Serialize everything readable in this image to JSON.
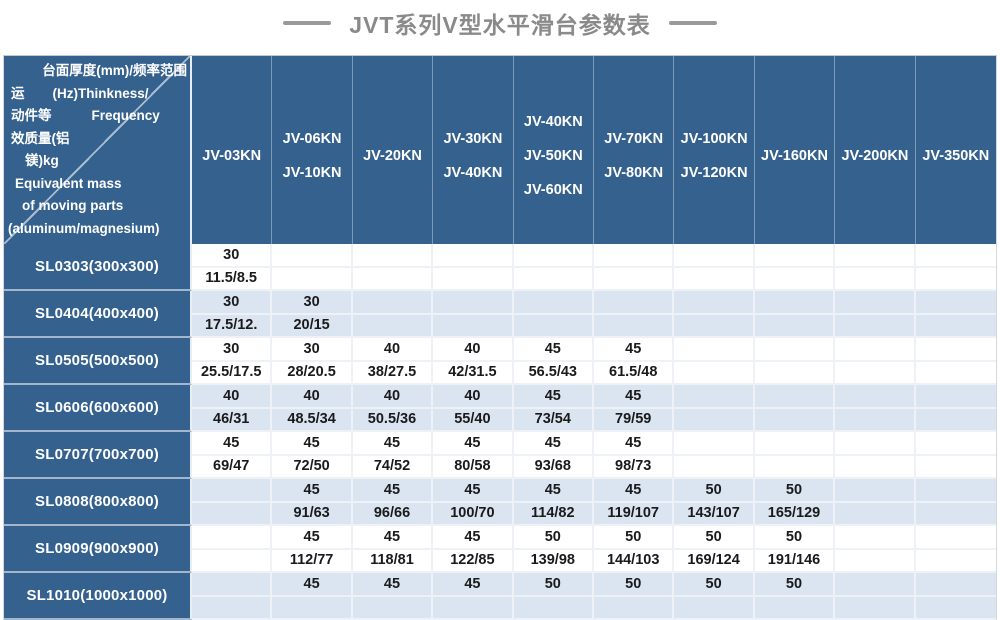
{
  "title": "JVT系列V型水平滑台参数表",
  "colors": {
    "header_blue": "#35618E",
    "stripe_blue": "#dbe5f1",
    "grid_line": "#eef1f5",
    "title_gray": "#8a8a8a",
    "data_text": "#1a1a1a",
    "header_text": "#ffffff"
  },
  "corner": {
    "lines": [
      {
        "left": "",
        "main": "台面厚度(mm)/频率范围"
      },
      {
        "left": "运",
        "main": "(Hz)Thinkness/"
      },
      {
        "left": "动件等",
        "main": "Frequency"
      },
      {
        "left": "效质量(铝",
        "main": ""
      },
      {
        "left": "镁)kg",
        "main": ""
      },
      {
        "left": "Equivalent mass",
        "main": ""
      },
      {
        "left": "of moving parts",
        "main": ""
      },
      {
        "left": "(aluminum/magnesium)",
        "main": ""
      }
    ]
  },
  "table": {
    "columns": [
      {
        "lines": [
          "JV-03KN"
        ]
      },
      {
        "lines": [
          "JV-06KN",
          "JV-10KN"
        ]
      },
      {
        "lines": [
          "JV-20KN"
        ]
      },
      {
        "lines": [
          "JV-30KN",
          "JV-40KN"
        ]
      },
      {
        "lines": [
          "JV-40KN",
          "JV-50KN",
          "JV-60KN"
        ]
      },
      {
        "lines": [
          "JV-70KN",
          "JV-80KN"
        ]
      },
      {
        "lines": [
          "JV-100KN",
          "JV-120KN"
        ]
      },
      {
        "lines": [
          "JV-160KN"
        ]
      },
      {
        "lines": [
          "JV-200KN"
        ]
      },
      {
        "lines": [
          "JV-350KN"
        ]
      }
    ],
    "rows": [
      {
        "label": "SL0303(300x300)",
        "cells": [
          [
            "30",
            "11.5/8.5"
          ],
          [
            "",
            ""
          ],
          [
            "",
            ""
          ],
          [
            "",
            ""
          ],
          [
            "",
            ""
          ],
          [
            "",
            ""
          ],
          [
            "",
            ""
          ],
          [
            "",
            ""
          ],
          [
            "",
            ""
          ],
          [
            "",
            ""
          ]
        ]
      },
      {
        "label": "SL0404(400x400)",
        "cells": [
          [
            "30",
            "17.5/12."
          ],
          [
            "30",
            "20/15"
          ],
          [
            "",
            ""
          ],
          [
            "",
            ""
          ],
          [
            "",
            ""
          ],
          [
            "",
            ""
          ],
          [
            "",
            ""
          ],
          [
            "",
            ""
          ],
          [
            "",
            ""
          ],
          [
            "",
            ""
          ]
        ]
      },
      {
        "label": "SL0505(500x500)",
        "cells": [
          [
            "30",
            "25.5/17.5"
          ],
          [
            "30",
            "28/20.5"
          ],
          [
            "40",
            "38/27.5"
          ],
          [
            "40",
            "42/31.5"
          ],
          [
            "45",
            "56.5/43"
          ],
          [
            "45",
            "61.5/48"
          ],
          [
            "",
            ""
          ],
          [
            "",
            ""
          ],
          [
            "",
            ""
          ],
          [
            "",
            ""
          ]
        ]
      },
      {
        "label": "SL0606(600x600)",
        "cells": [
          [
            "40",
            "46/31"
          ],
          [
            "40",
            "48.5/34"
          ],
          [
            "40",
            "50.5/36"
          ],
          [
            "40",
            "55/40"
          ],
          [
            "45",
            "73/54"
          ],
          [
            "45",
            "79/59"
          ],
          [
            "",
            ""
          ],
          [
            "",
            ""
          ],
          [
            "",
            ""
          ],
          [
            "",
            ""
          ]
        ]
      },
      {
        "label": "SL0707(700x700)",
        "cells": [
          [
            "45",
            "69/47"
          ],
          [
            "45",
            "72/50"
          ],
          [
            "45",
            "74/52"
          ],
          [
            "45",
            "80/58"
          ],
          [
            "45",
            "93/68"
          ],
          [
            "45",
            "98/73"
          ],
          [
            "",
            ""
          ],
          [
            "",
            ""
          ],
          [
            "",
            ""
          ],
          [
            "",
            ""
          ]
        ]
      },
      {
        "label": "SL0808(800x800)",
        "cells": [
          [
            "",
            ""
          ],
          [
            "45",
            "91/63"
          ],
          [
            "45",
            "96/66"
          ],
          [
            "45",
            "100/70"
          ],
          [
            "45",
            "114/82"
          ],
          [
            "45",
            "119/107"
          ],
          [
            "50",
            "143/107"
          ],
          [
            "50",
            "165/129"
          ],
          [
            "",
            ""
          ],
          [
            "",
            ""
          ]
        ]
      },
      {
        "label": "SL0909(900x900)",
        "cells": [
          [
            "",
            ""
          ],
          [
            "45",
            "112/77"
          ],
          [
            "45",
            "118/81"
          ],
          [
            "45",
            "122/85"
          ],
          [
            "50",
            "139/98"
          ],
          [
            "50",
            "144/103"
          ],
          [
            "50",
            "169/124"
          ],
          [
            "50",
            "191/146"
          ],
          [
            "",
            ""
          ],
          [
            "",
            ""
          ]
        ]
      },
      {
        "label": "SL1010(1000x1000)",
        "cells": [
          [
            "",
            ""
          ],
          [
            "45",
            ""
          ],
          [
            "45",
            ""
          ],
          [
            "45",
            ""
          ],
          [
            "50",
            ""
          ],
          [
            "50",
            ""
          ],
          [
            "50",
            ""
          ],
          [
            "50",
            ""
          ],
          [
            "",
            ""
          ],
          [
            "",
            ""
          ]
        ]
      }
    ]
  }
}
